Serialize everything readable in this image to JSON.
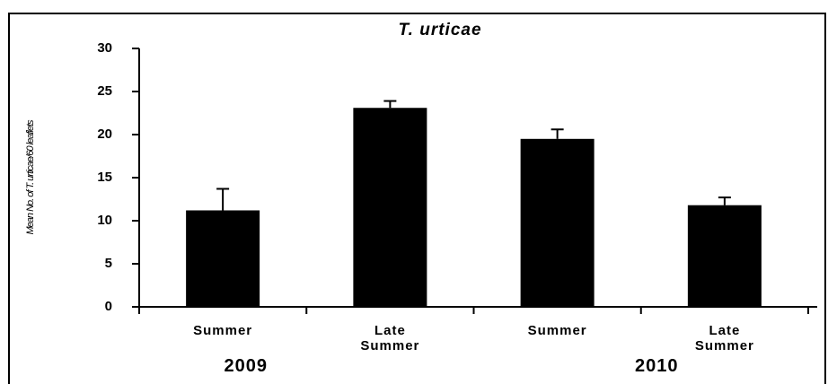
{
  "chart_data": {
    "type": "bar",
    "title": "T. urticae",
    "y_label": "Mean No. of T. urticae/60 leaflets",
    "categories": [
      "Summer",
      "Late Summer",
      "Summer",
      "Late Summer"
    ],
    "group_labels": [
      "2009",
      "2010"
    ],
    "values": [
      11.2,
      23.1,
      19.5,
      11.8
    ],
    "errors": [
      2.5,
      0.8,
      1.1,
      0.9
    ],
    "color": "#000000",
    "ylim": [
      0,
      30
    ],
    "yticks": [
      0,
      5,
      10,
      15,
      20,
      25,
      30
    ],
    "grid": false
  }
}
